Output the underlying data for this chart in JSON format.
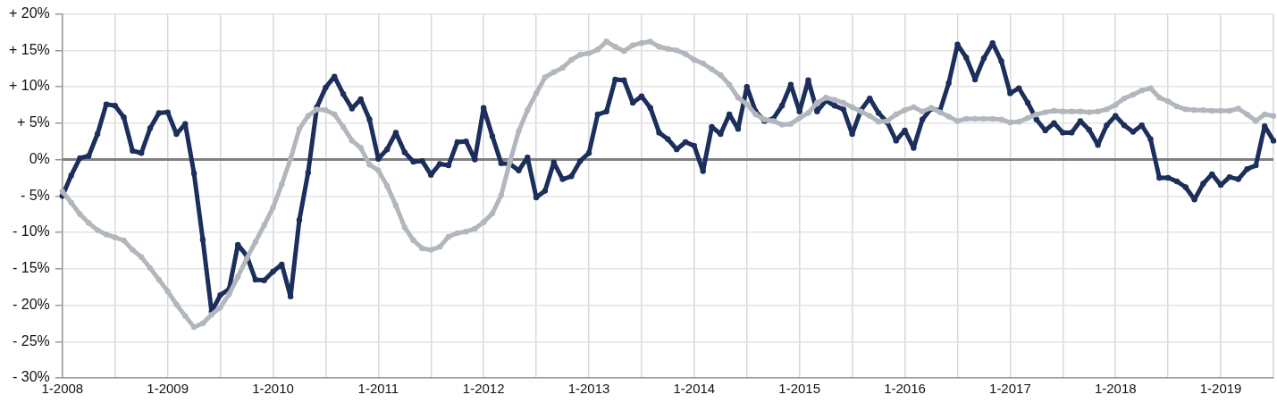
{
  "chart_data": {
    "type": "line",
    "categories": [
      "1-2008",
      null,
      null,
      null,
      null,
      null,
      null,
      null,
      null,
      null,
      null,
      null,
      "1-2009",
      null,
      null,
      null,
      null,
      null,
      null,
      null,
      null,
      null,
      null,
      null,
      "1-2010",
      null,
      null,
      null,
      null,
      null,
      null,
      null,
      null,
      null,
      null,
      null,
      "1-2011",
      null,
      null,
      null,
      null,
      null,
      null,
      null,
      null,
      null,
      null,
      null,
      "1-2012",
      null,
      null,
      null,
      null,
      null,
      null,
      null,
      null,
      null,
      null,
      null,
      "1-2013",
      null,
      null,
      null,
      null,
      null,
      null,
      null,
      null,
      null,
      null,
      null,
      "1-2014",
      null,
      null,
      null,
      null,
      null,
      null,
      null,
      null,
      null,
      null,
      null,
      "1-2015",
      null,
      null,
      null,
      null,
      null,
      null,
      null,
      null,
      null,
      null,
      null,
      "1-2016",
      null,
      null,
      null,
      null,
      null,
      null,
      null,
      null,
      null,
      null,
      null,
      "1-2017",
      null,
      null,
      null,
      null,
      null,
      null,
      null,
      null,
      null,
      null,
      null,
      "1-2018",
      null,
      null,
      null,
      null,
      null,
      null,
      null,
      null,
      null,
      null,
      null,
      "1-2019",
      null,
      null,
      null,
      null,
      null,
      null
    ],
    "series": [
      {
        "color": "#b1b7bd",
        "values": [
          -4.4,
          -5.9,
          -7.5,
          -8.7,
          -9.7,
          -10.3,
          -10.7,
          -11.1,
          -12.4,
          -13.4,
          -14.9,
          -16.5,
          -18.1,
          -19.9,
          -21.5,
          -23.0,
          -22.5,
          -21.3,
          -20.3,
          -18.5,
          -16.1,
          -13.6,
          -11.3,
          -9.0,
          -6.6,
          -3.4,
          0.1,
          4.2,
          6.0,
          6.9,
          6.8,
          6.2,
          4.5,
          2.6,
          1.6,
          -0.7,
          -1.5,
          -3.6,
          -6.3,
          -9.3,
          -11.1,
          -12.2,
          -12.4,
          -12.0,
          -10.6,
          -10.1,
          -9.9,
          -9.5,
          -8.6,
          -7.4,
          -4.9,
          -0.3,
          3.9,
          6.8,
          9.1,
          11.3,
          12.0,
          12.6,
          13.7,
          14.4,
          14.6,
          15.1,
          16.2,
          15.5,
          14.9,
          15.7,
          16.0,
          16.2,
          15.5,
          15.2,
          15.0,
          14.5,
          13.7,
          13.2,
          12.4,
          11.6,
          10.3,
          8.5,
          7.6,
          6.2,
          5.5,
          5.3,
          4.8,
          4.9,
          5.7,
          6.4,
          7.8,
          8.5,
          8.2,
          7.8,
          7.2,
          6.6,
          6.0,
          5.2,
          5.3,
          6.2,
          6.8,
          7.2,
          6.6,
          7.1,
          6.5,
          5.9,
          5.3,
          5.6,
          5.6,
          5.6,
          5.6,
          5.5,
          5.1,
          5.2,
          5.7,
          6.2,
          6.5,
          6.7,
          6.6,
          6.6,
          6.6,
          6.5,
          6.6,
          6.9,
          7.5,
          8.4,
          8.9,
          9.5,
          9.8,
          8.5,
          8.0,
          7.3,
          6.9,
          6.8,
          6.8,
          6.7,
          6.7,
          6.7,
          7.0,
          6.2,
          5.3,
          6.2,
          6.0
        ]
      },
      {
        "color": "#1c2e5c",
        "values": [
          -5.0,
          -2.2,
          0.2,
          0.5,
          3.5,
          7.6,
          7.4,
          5.8,
          1.2,
          0.9,
          4.3,
          6.4,
          6.5,
          3.5,
          4.9,
          -1.9,
          -11.0,
          -20.9,
          -18.6,
          -17.8,
          -11.7,
          -13.2,
          -16.5,
          -16.6,
          -15.4,
          -14.4,
          -18.8,
          -8.3,
          -1.8,
          7.2,
          9.9,
          11.4,
          9.0,
          7.0,
          8.3,
          5.5,
          0.1,
          1.4,
          3.7,
          1.0,
          -0.3,
          -0.2,
          -2.1,
          -0.6,
          -0.8,
          2.4,
          2.5,
          0.0,
          7.1,
          3.2,
          -0.5,
          -0.6,
          -1.5,
          0.3,
          -5.2,
          -4.3,
          -0.4,
          -2.7,
          -2.3,
          -0.2,
          0.9,
          6.2,
          6.6,
          11.0,
          10.9,
          7.8,
          8.7,
          7.1,
          3.7,
          2.8,
          1.4,
          2.4,
          1.9,
          -1.6,
          4.5,
          3.5,
          6.2,
          4.2,
          10.0,
          6.6,
          5.3,
          5.6,
          7.4,
          10.3,
          6.6,
          10.9,
          6.6,
          8.1,
          7.4,
          6.9,
          3.5,
          6.8,
          8.4,
          6.4,
          5.1,
          2.6,
          4.0,
          1.6,
          5.5,
          7.0,
          6.7,
          10.5,
          15.8,
          14.0,
          11.0,
          13.9,
          16.0,
          13.5,
          9.1,
          9.8,
          7.8,
          5.5,
          4.0,
          5.0,
          3.7,
          3.7,
          5.3,
          4.1,
          2.0,
          4.7,
          6.0,
          4.7,
          3.8,
          4.7,
          2.8,
          -2.5,
          -2.5,
          -3.0,
          -3.8,
          -5.5,
          -3.3,
          -2.0,
          -3.5,
          -2.4,
          -2.7,
          -1.3,
          -0.8,
          4.6,
          2.6
        ]
      }
    ],
    "ylim": [
      -30,
      20
    ],
    "yticks": [
      {
        "value": -30,
        "label": "- 30%"
      },
      {
        "value": -25,
        "label": "- 25%"
      },
      {
        "value": -20,
        "label": "- 20%"
      },
      {
        "value": -15,
        "label": "- 15%"
      },
      {
        "value": -10,
        "label": "- 10%"
      },
      {
        "value": -5,
        "label": "- 5%"
      },
      {
        "value": 0,
        "label": "0%"
      },
      {
        "value": 5,
        "label": "+ 5%"
      },
      {
        "value": 10,
        "label": "+ 10%"
      },
      {
        "value": 15,
        "label": "+ 15%"
      },
      {
        "value": 20,
        "label": "+ 20%"
      }
    ],
    "ref_lines": [
      {
        "axis": "y",
        "value": 0,
        "label": null,
        "color": "#808080"
      }
    ],
    "grid": true,
    "legend": false,
    "marker": "circle",
    "line_style": "solid"
  }
}
